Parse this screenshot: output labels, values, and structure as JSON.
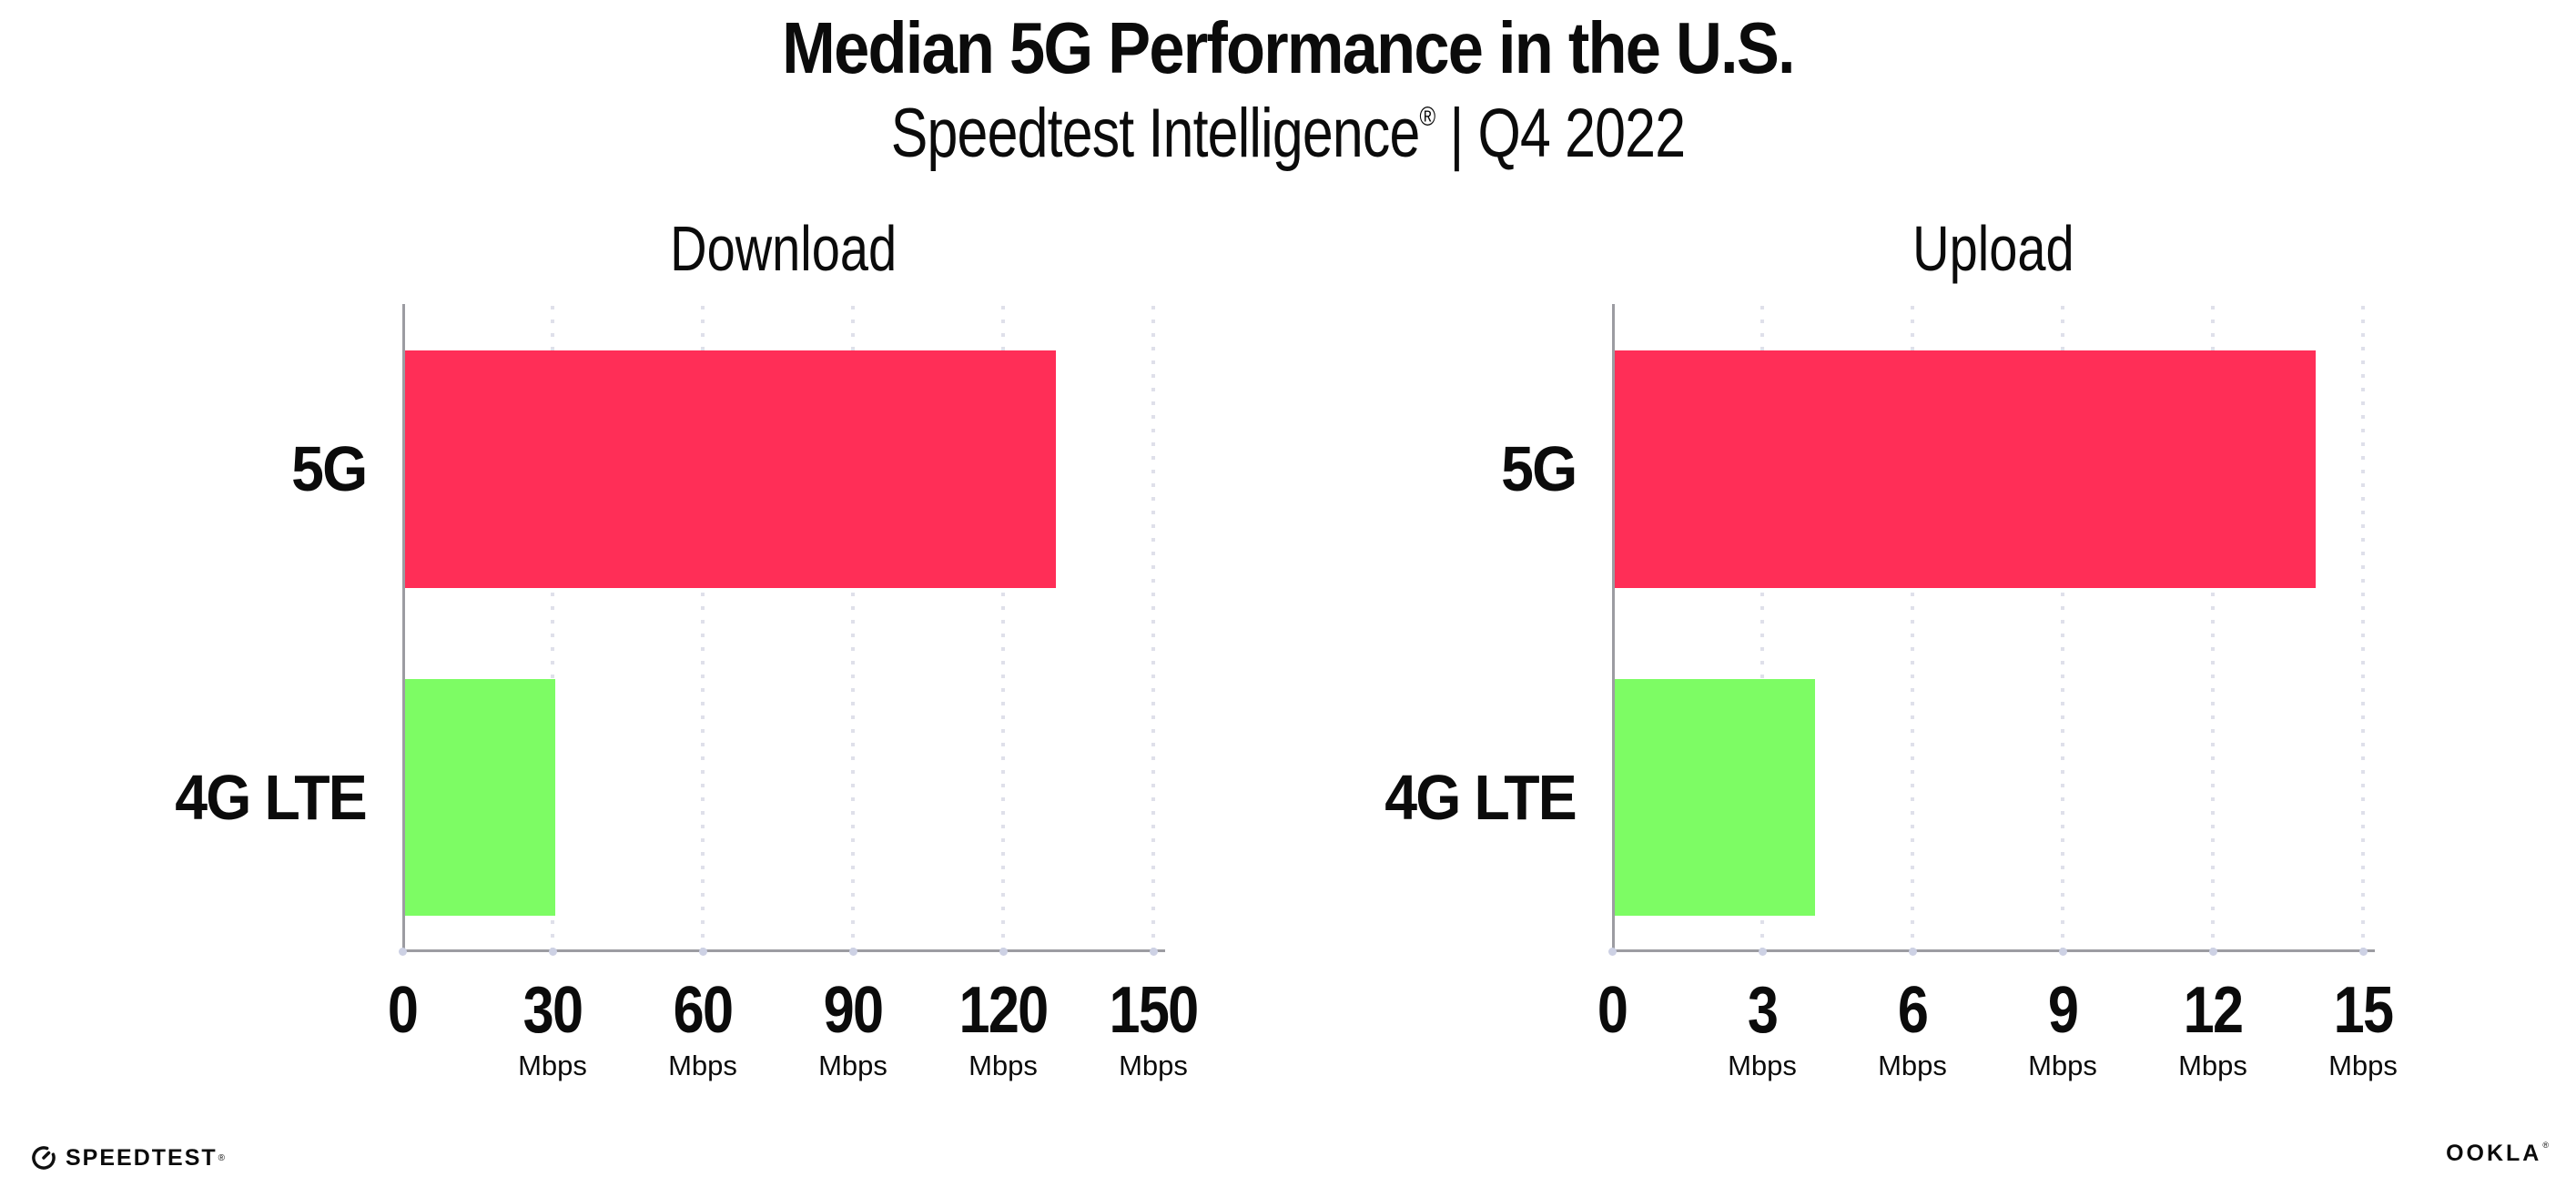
{
  "header": {
    "title": "Median 5G Performance in the U.S.",
    "subtitle_brand": "Speedtest Intelligence",
    "subtitle_mark": "®",
    "subtitle_period": " | Q4 2022"
  },
  "footer": {
    "speedtest_label": "SPEEDTEST",
    "speedtest_mark": "®",
    "ookla_label": "OOKLA",
    "ookla_mark": "®"
  },
  "colors": {
    "bar_5g": "#FF2E57",
    "bar_4g_lte": "#7DFC64",
    "axis_line": "#9C9CA2",
    "gridline": "#DFE0EA",
    "axis_tick_dot": "#CDD1E4",
    "text": "#0B0B0B"
  },
  "chart_data": [
    {
      "type": "bar",
      "orientation": "horizontal",
      "title": "Download",
      "categories": [
        "5G",
        "4G LTE"
      ],
      "values": [
        130,
        30
      ],
      "unit": "Mbps",
      "xlim": [
        0,
        150
      ],
      "xticks": [
        0,
        30,
        60,
        90,
        120,
        150
      ],
      "tick_unit_label": "Mbps",
      "grid": "dotted vertical gridlines at each tick",
      "legend": "none",
      "bar_colors": [
        "#FF2E57",
        "#7DFC64"
      ]
    },
    {
      "type": "bar",
      "orientation": "horizontal",
      "title": "Upload",
      "categories": [
        "5G",
        "4G LTE"
      ],
      "values": [
        14,
        4
      ],
      "unit": "Mbps",
      "xlim": [
        0,
        15
      ],
      "xticks": [
        0,
        3,
        6,
        9,
        12,
        15
      ],
      "tick_unit_label": "Mbps",
      "grid": "dotted vertical gridlines at each tick",
      "legend": "none",
      "bar_colors": [
        "#FF2E57",
        "#7DFC64"
      ]
    }
  ]
}
